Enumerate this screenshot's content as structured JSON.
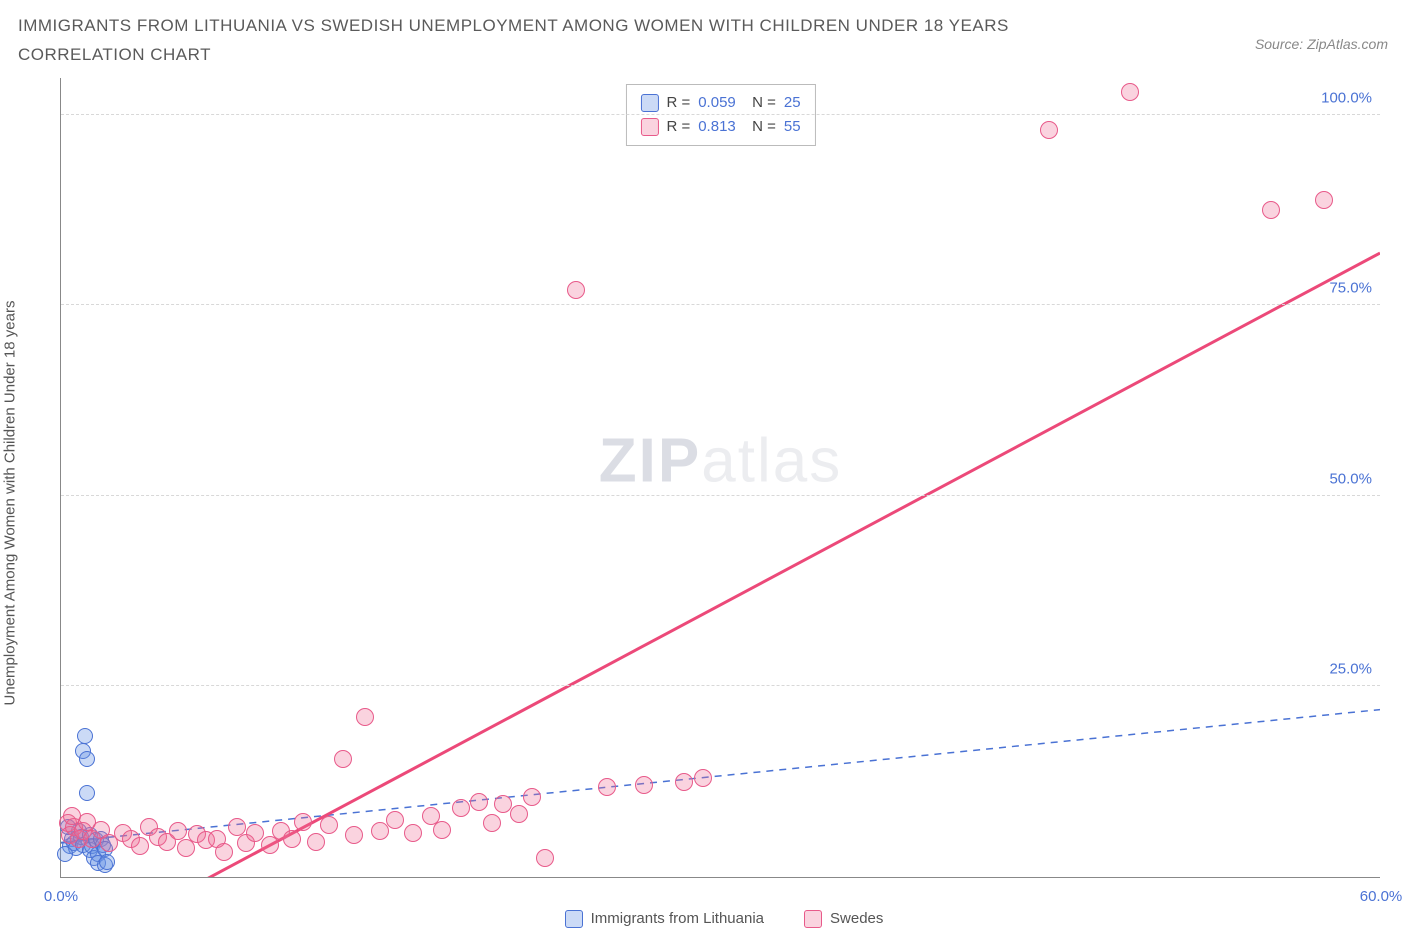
{
  "title": "IMMIGRANTS FROM LITHUANIA VS SWEDISH UNEMPLOYMENT AMONG WOMEN WITH CHILDREN UNDER 18 YEARS CORRELATION CHART",
  "source_label": "Source: ZipAtlas.com",
  "y_axis_title": "Unemployment Among Women with Children Under 18 years",
  "watermark": {
    "bold": "ZIP",
    "light": "atlas"
  },
  "chart": {
    "type": "scatter",
    "xlim": [
      0,
      60
    ],
    "ylim": [
      0,
      105
    ],
    "x_ticks": [
      0,
      60
    ],
    "x_tick_labels": [
      "0.0%",
      "60.0%"
    ],
    "y_ticks": [
      25,
      50,
      75,
      100
    ],
    "y_tick_labels": [
      "25.0%",
      "50.0%",
      "75.0%",
      "100.0%"
    ],
    "grid_color": "#d8d8d8",
    "background_color": "#ffffff",
    "series": [
      {
        "id": "lithuania",
        "label": "Immigrants from Lithuania",
        "R": "0.059",
        "N": "25",
        "fill": "rgba(105,150,230,0.35)",
        "stroke": "#4a72d4",
        "marker_radius": 8,
        "trend": {
          "x1": 0,
          "y1": 4.5,
          "x2": 2.1,
          "y2": 5.2,
          "solid_until_x": 2.1,
          "dash_to_x": 60,
          "dash_y2": 22,
          "color": "#4a72d4",
          "width": 2
        },
        "points": [
          [
            0.4,
            4
          ],
          [
            0.5,
            5
          ],
          [
            0.6,
            4.5
          ],
          [
            0.7,
            3.8
          ],
          [
            0.8,
            6
          ],
          [
            0.9,
            5.2
          ],
          [
            1.0,
            4.2
          ],
          [
            1.0,
            16.5
          ],
          [
            1.1,
            18.5
          ],
          [
            1.2,
            15.5
          ],
          [
            1.2,
            11
          ],
          [
            1.3,
            3.5
          ],
          [
            1.3,
            5.5
          ],
          [
            1.4,
            4
          ],
          [
            1.5,
            2.5
          ],
          [
            1.6,
            4.8
          ],
          [
            1.7,
            3
          ],
          [
            1.7,
            1.8
          ],
          [
            1.8,
            5
          ],
          [
            1.9,
            4.2
          ],
          [
            2.0,
            3.6
          ],
          [
            2.0,
            1.5
          ],
          [
            2.1,
            2
          ],
          [
            0.3,
            6.5
          ],
          [
            0.2,
            3
          ]
        ]
      },
      {
        "id": "swedes",
        "label": "Swedes",
        "R": "0.813",
        "N": "55",
        "fill": "rgba(240,110,150,0.30)",
        "stroke": "#e85a8a",
        "marker_radius": 9,
        "trend": {
          "x1": 5.5,
          "y1": -2,
          "x2": 60,
          "y2": 82,
          "color": "#ec4979",
          "width": 3
        },
        "points": [
          [
            0.3,
            7
          ],
          [
            0.4,
            5.5
          ],
          [
            0.6,
            6.5
          ],
          [
            0.8,
            5
          ],
          [
            1.0,
            6
          ],
          [
            1.4,
            5
          ],
          [
            1.8,
            6.2
          ],
          [
            2.2,
            4.5
          ],
          [
            2.8,
            5.8
          ],
          [
            3.2,
            5
          ],
          [
            3.6,
            4
          ],
          [
            4.0,
            6.5
          ],
          [
            4.4,
            5.2
          ],
          [
            4.8,
            4.6
          ],
          [
            5.3,
            6
          ],
          [
            5.7,
            3.8
          ],
          [
            6.2,
            5.6
          ],
          [
            6.6,
            4.8
          ],
          [
            7.1,
            5
          ],
          [
            7.4,
            3.2
          ],
          [
            8.0,
            6.5
          ],
          [
            8.4,
            4.5
          ],
          [
            8.8,
            5.8
          ],
          [
            9.5,
            4.2
          ],
          [
            10.0,
            6
          ],
          [
            10.5,
            5
          ],
          [
            11.0,
            7.2
          ],
          [
            11.6,
            4.6
          ],
          [
            12.2,
            6.8
          ],
          [
            12.8,
            15.5
          ],
          [
            13.3,
            5.5
          ],
          [
            13.8,
            21
          ],
          [
            14.5,
            6
          ],
          [
            15.2,
            7.5
          ],
          [
            16.0,
            5.8
          ],
          [
            16.8,
            8
          ],
          [
            17.3,
            6.2
          ],
          [
            18.2,
            9
          ],
          [
            19.0,
            9.8
          ],
          [
            19.6,
            7
          ],
          [
            20.1,
            9.5
          ],
          [
            20.8,
            8.2
          ],
          [
            21.4,
            10.5
          ],
          [
            22.0,
            2.5
          ],
          [
            23.4,
            77
          ],
          [
            24.8,
            11.8
          ],
          [
            26.5,
            12
          ],
          [
            28.3,
            12.5
          ],
          [
            29.2,
            13
          ],
          [
            44.9,
            98
          ],
          [
            48.6,
            103
          ],
          [
            55.0,
            87.5
          ],
          [
            57.4,
            88.8
          ],
          [
            0.5,
            8
          ],
          [
            1.2,
            7.2
          ]
        ]
      }
    ]
  },
  "legend_box": {
    "rows": [
      {
        "swatch_fill": "rgba(105,150,230,0.35)",
        "swatch_stroke": "#4a72d4",
        "R": "0.059",
        "N": "25"
      },
      {
        "swatch_fill": "rgba(240,110,150,0.30)",
        "swatch_stroke": "#e85a8a",
        "R": "0.813",
        "N": "55"
      }
    ]
  },
  "bottom_legend": [
    {
      "swatch_fill": "rgba(105,150,230,0.35)",
      "swatch_stroke": "#4a72d4",
      "label": "Immigrants from Lithuania"
    },
    {
      "swatch_fill": "rgba(240,110,150,0.30)",
      "swatch_stroke": "#e85a8a",
      "label": "Swedes"
    }
  ]
}
